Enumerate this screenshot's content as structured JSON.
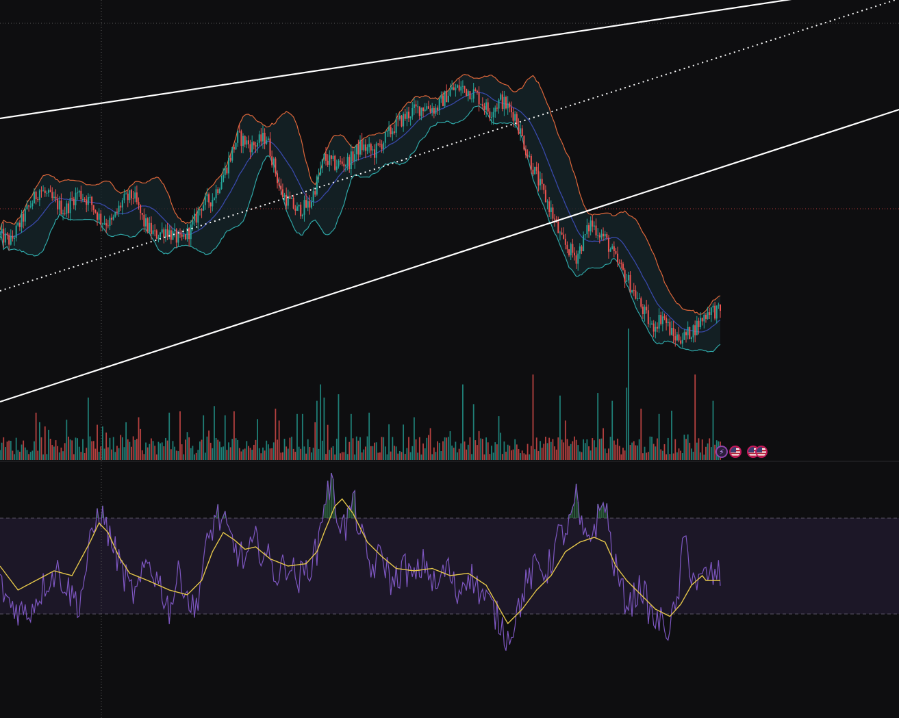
{
  "colors": {
    "background": "#0e0e10",
    "up": "#26a69a",
    "down": "#ef5350",
    "bb_upper": "#e0673a",
    "bb_lower": "#2fa8a8",
    "bb_basis": "#3949ab",
    "bb_fill": "#16262a",
    "rsi": "#7e57c2",
    "rsi_ma": "#e6c84a",
    "rsi_band": "#1c1727",
    "channel": "#ffffff",
    "crosshair": "#5a5a5a",
    "price_marker": "#b53a3a"
  },
  "events": {
    "icons": [
      "lightning-icon",
      "us-flag-icon",
      "us-flag-icon",
      "us-flag-icon"
    ]
  },
  "chart_data": [
    {
      "type": "candlestick",
      "indicators": [
        "bollinger-bands",
        "parallel-channel"
      ],
      "price_path": [
        [
          0,
          0.48
        ],
        [
          6,
          0.46
        ],
        [
          14,
          0.55
        ],
        [
          22,
          0.63
        ],
        [
          28,
          0.6
        ],
        [
          36,
          0.56
        ],
        [
          43,
          0.62
        ],
        [
          50,
          0.59
        ],
        [
          56,
          0.53
        ],
        [
          62,
          0.52
        ],
        [
          68,
          0.59
        ],
        [
          74,
          0.61
        ],
        [
          80,
          0.52
        ],
        [
          86,
          0.48
        ],
        [
          92,
          0.5
        ],
        [
          100,
          0.46
        ],
        [
          106,
          0.5
        ],
        [
          112,
          0.58
        ],
        [
          118,
          0.6
        ],
        [
          125,
          0.69
        ],
        [
          132,
          0.8
        ],
        [
          140,
          0.77
        ],
        [
          148,
          0.8
        ],
        [
          156,
          0.62
        ],
        [
          165,
          0.56
        ],
        [
          172,
          0.58
        ],
        [
          180,
          0.73
        ],
        [
          186,
          0.71
        ],
        [
          194,
          0.72
        ],
        [
          200,
          0.77
        ],
        [
          208,
          0.75
        ],
        [
          220,
          0.84
        ],
        [
          228,
          0.88
        ],
        [
          236,
          0.9
        ],
        [
          242,
          0.89
        ],
        [
          250,
          0.95
        ],
        [
          256,
          0.96
        ],
        [
          264,
          0.94
        ],
        [
          272,
          0.88
        ],
        [
          278,
          0.92
        ],
        [
          286,
          0.87
        ],
        [
          292,
          0.76
        ],
        [
          300,
          0.64
        ],
        [
          306,
          0.56
        ],
        [
          312,
          0.46
        ],
        [
          320,
          0.41
        ],
        [
          328,
          0.52
        ],
        [
          336,
          0.47
        ],
        [
          342,
          0.4
        ],
        [
          350,
          0.32
        ],
        [
          356,
          0.25
        ],
        [
          362,
          0.18
        ],
        [
          368,
          0.22
        ],
        [
          374,
          0.15
        ],
        [
          380,
          0.15
        ],
        [
          386,
          0.18
        ],
        [
          394,
          0.24
        ],
        [
          400,
          0.23
        ]
      ],
      "volume_spikes": [
        [
          20,
          0.72
        ],
        [
          49,
          0.95
        ],
        [
          77,
          0.65
        ],
        [
          94,
          0.72
        ],
        [
          100,
          0.74
        ],
        [
          113,
          0.68
        ],
        [
          119,
          0.82
        ],
        [
          125,
          0.68
        ],
        [
          130,
          0.74
        ],
        [
          153,
          0.78
        ],
        [
          155,
          0.6
        ],
        [
          165,
          0.7
        ],
        [
          168,
          0.7
        ],
        [
          176,
          0.9
        ],
        [
          178,
          1.15
        ],
        [
          180,
          0.95
        ],
        [
          188,
          1.0
        ],
        [
          195,
          0.7
        ],
        [
          205,
          0.72
        ],
        [
          230,
          0.65
        ],
        [
          257,
          1.15
        ],
        [
          263,
          0.85
        ],
        [
          296,
          1.3
        ],
        [
          311,
          0.98
        ],
        [
          314,
          0.6
        ],
        [
          332,
          1.02
        ],
        [
          340,
          0.9
        ],
        [
          348,
          1.1
        ],
        [
          349,
          2.0
        ],
        [
          356,
          0.78
        ],
        [
          366,
          0.7
        ],
        [
          373,
          0.75
        ],
        [
          386,
          1.3
        ],
        [
          396,
          0.9
        ]
      ],
      "channel": {
        "x_span": [
          0,
          500
        ],
        "upper": [
          0.86,
          1.3
        ],
        "middle": [
          0.3,
          1.25
        ],
        "lower": [
          -0.06,
          0.89
        ]
      }
    },
    {
      "type": "line",
      "indicator": "RSI",
      "ylim": [
        0,
        100
      ],
      "levels": [
        70,
        30
      ],
      "rsi_path": [
        [
          0,
          42
        ],
        [
          5,
          35
        ],
        [
          10,
          32
        ],
        [
          15,
          30
        ],
        [
          20,
          36
        ],
        [
          26,
          44
        ],
        [
          32,
          48
        ],
        [
          38,
          40
        ],
        [
          44,
          34
        ],
        [
          50,
          58
        ],
        [
          55,
          74
        ],
        [
          60,
          64
        ],
        [
          66,
          52
        ],
        [
          72,
          40
        ],
        [
          76,
          38
        ],
        [
          82,
          52
        ],
        [
          88,
          44
        ],
        [
          94,
          32
        ],
        [
          100,
          48
        ],
        [
          104,
          38
        ],
        [
          108,
          30
        ],
        [
          114,
          55
        ],
        [
          120,
          72
        ],
        [
          125,
          66
        ],
        [
          130,
          58
        ],
        [
          136,
          52
        ],
        [
          142,
          60
        ],
        [
          148,
          54
        ],
        [
          154,
          46
        ],
        [
          160,
          52
        ],
        [
          165,
          44
        ],
        [
          170,
          48
        ],
        [
          176,
          56
        ],
        [
          180,
          78
        ],
        [
          184,
          84
        ],
        [
          188,
          70
        ],
        [
          192,
          66
        ],
        [
          196,
          78
        ],
        [
          200,
          64
        ],
        [
          206,
          48
        ],
        [
          212,
          55
        ],
        [
          218,
          42
        ],
        [
          224,
          50
        ],
        [
          230,
          44
        ],
        [
          236,
          52
        ],
        [
          242,
          40
        ],
        [
          248,
          50
        ],
        [
          254,
          38
        ],
        [
          260,
          48
        ],
        [
          266,
          40
        ],
        [
          272,
          34
        ],
        [
          278,
          26
        ],
        [
          282,
          20
        ],
        [
          286,
          28
        ],
        [
          292,
          42
        ],
        [
          298,
          50
        ],
        [
          304,
          48
        ],
        [
          310,
          62
        ],
        [
          316,
          66
        ],
        [
          320,
          78
        ],
        [
          324,
          60
        ],
        [
          330,
          66
        ],
        [
          336,
          78
        ],
        [
          340,
          54
        ],
        [
          346,
          38
        ],
        [
          350,
          34
        ],
        [
          356,
          42
        ],
        [
          362,
          28
        ],
        [
          368,
          26
        ],
        [
          372,
          24
        ],
        [
          376,
          34
        ],
        [
          380,
          62
        ],
        [
          384,
          48
        ],
        [
          388,
          42
        ],
        [
          392,
          46
        ]
      ],
      "rsi_ma_path": [
        [
          0,
          50
        ],
        [
          10,
          40
        ],
        [
          20,
          44
        ],
        [
          30,
          48
        ],
        [
          40,
          46
        ],
        [
          50,
          60
        ],
        [
          55,
          68
        ],
        [
          60,
          64
        ],
        [
          66,
          54
        ],
        [
          72,
          47
        ],
        [
          82,
          44
        ],
        [
          94,
          40
        ],
        [
          104,
          38
        ],
        [
          112,
          44
        ],
        [
          118,
          56
        ],
        [
          124,
          64
        ],
        [
          130,
          61
        ],
        [
          136,
          57
        ],
        [
          142,
          58
        ],
        [
          150,
          53
        ],
        [
          160,
          50
        ],
        [
          170,
          51
        ],
        [
          176,
          56
        ],
        [
          180,
          64
        ],
        [
          186,
          75
        ],
        [
          190,
          78
        ],
        [
          196,
          72
        ],
        [
          204,
          60
        ],
        [
          212,
          54
        ],
        [
          220,
          49
        ],
        [
          230,
          48
        ],
        [
          240,
          49
        ],
        [
          250,
          46
        ],
        [
          260,
          47
        ],
        [
          270,
          42
        ],
        [
          276,
          34
        ],
        [
          282,
          26
        ],
        [
          290,
          32
        ],
        [
          298,
          40
        ],
        [
          306,
          46
        ],
        [
          314,
          56
        ],
        [
          322,
          60
        ],
        [
          330,
          62
        ],
        [
          336,
          60
        ],
        [
          342,
          50
        ],
        [
          348,
          44
        ],
        [
          356,
          38
        ],
        [
          364,
          32
        ],
        [
          372,
          29
        ],
        [
          378,
          34
        ],
        [
          384,
          42
        ],
        [
          390,
          46
        ],
        [
          392,
          44
        ]
      ]
    }
  ]
}
